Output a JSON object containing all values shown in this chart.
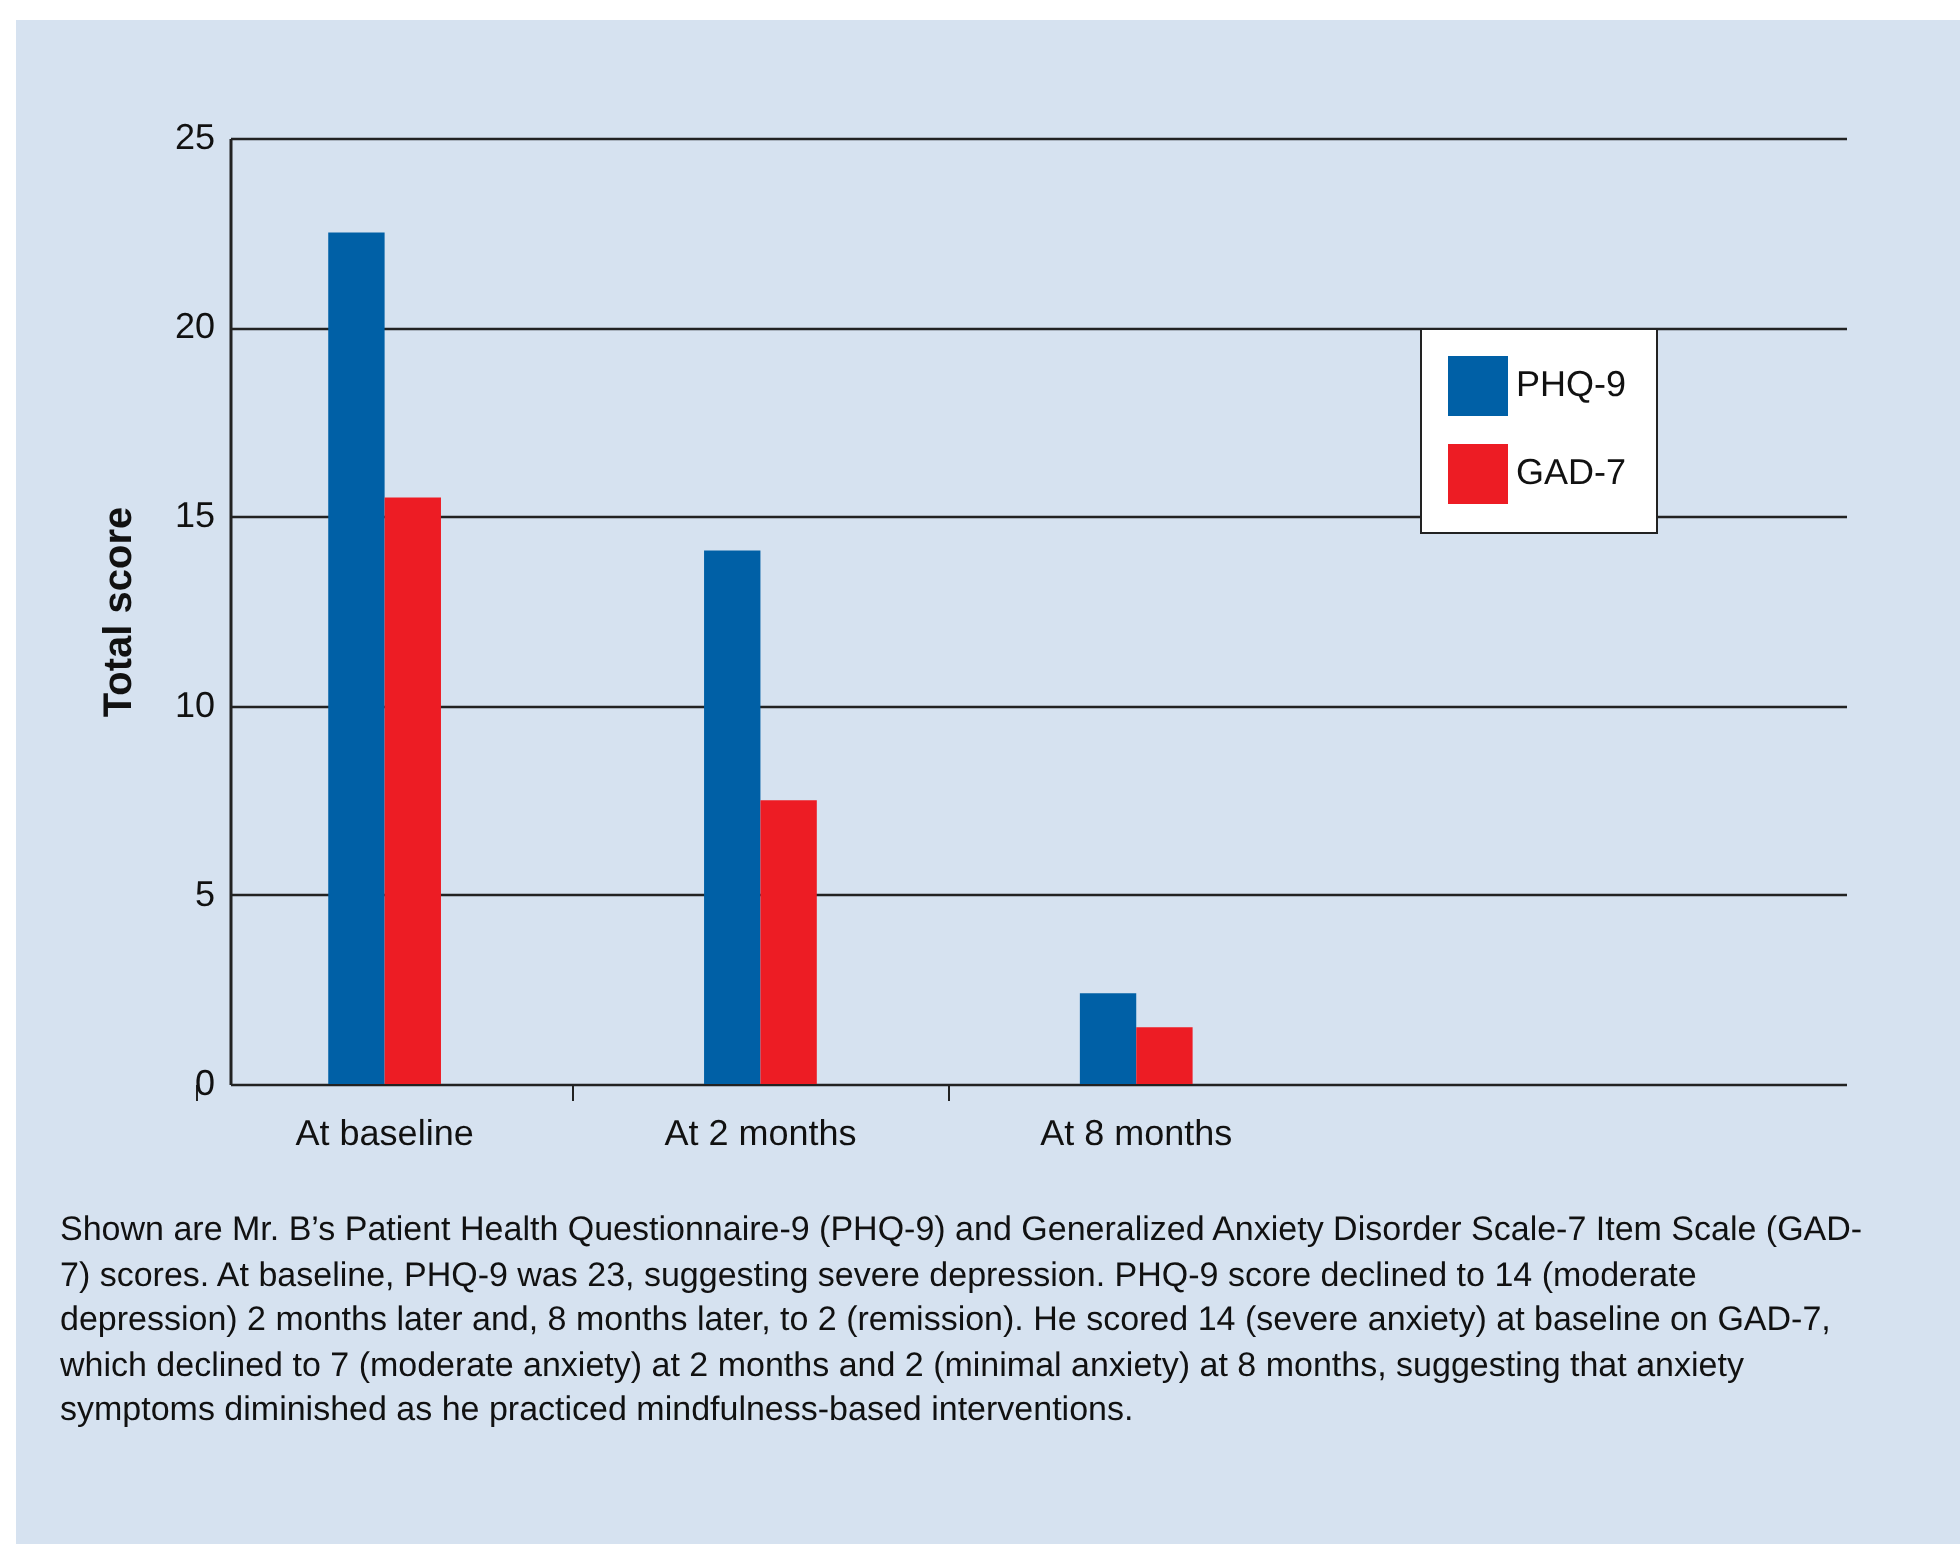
{
  "chart_data": {
    "type": "bar",
    "ylabel": "Total score",
    "categories": [
      "At baseline",
      "At 2 months",
      "At 8 months"
    ],
    "series": [
      {
        "name": "PHQ-9",
        "color": "#0060a6",
        "values": [
          22.5,
          14.1,
          2.4
        ]
      },
      {
        "name": "GAD-7",
        "color": "#ed1c24",
        "values": [
          15.5,
          7.5,
          1.5
        ]
      }
    ],
    "ylim": [
      0,
      25
    ],
    "yticks": [
      0,
      5,
      10,
      15,
      20,
      25
    ],
    "grid": "y",
    "legend": "top right",
    "annotations": [
      "Shown are Mr. B’s Patient Health Questionnaire-9 (PHQ-9) and Generalized Anxiety Disorder Scale-7 Item Scale (GAD-7) scores. At baseline, PHQ-9 was 23, suggesting severe depression. PHQ-9 score declined to 14 (moderate depression) 2 months later and, 8 months later, to 2 (remission). He scored 14 (severe anxiety) at baseline on GAD-7, which declined to 7 (moderate anxiety) at 2 months and 2 (minimal anxiety) at 8 months, suggesting that anxiety symptoms diminished as he practiced mindfulness-based interventions."
    ]
  }
}
